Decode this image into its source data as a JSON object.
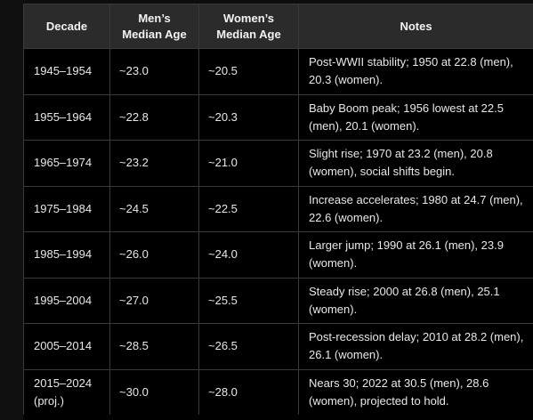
{
  "table": {
    "headers": {
      "decade": "Decade",
      "men_line1": "Men’s",
      "men_line2": "Median Age",
      "women_line1": "Women’s",
      "women_line2": "Median Age",
      "notes": "Notes"
    },
    "rows": [
      {
        "decade": "1945–1954",
        "men": "~23.0",
        "women": "~20.5",
        "notes": "Post-WWII stability; 1950 at 22.8 (men), 20.3 (women)."
      },
      {
        "decade": "1955–1964",
        "men": "~22.8",
        "women": "~20.3",
        "notes": "Baby Boom peak; 1956 lowest at 22.5 (men), 20.1 (women)."
      },
      {
        "decade": "1965–1974",
        "men": "~23.2",
        "women": "~21.0",
        "notes": "Slight rise; 1970 at 23.2 (men), 20.8 (women), social shifts begin."
      },
      {
        "decade": "1975–1984",
        "men": "~24.5",
        "women": "~22.5",
        "notes": "Increase accelerates; 1980 at 24.7 (men), 22.6 (women)."
      },
      {
        "decade": "1985–1994",
        "men": "~26.0",
        "women": "~24.0",
        "notes": "Larger jump; 1990 at 26.1 (men), 23.9 (women)."
      },
      {
        "decade": "1995–2004",
        "men": "~27.0",
        "women": "~25.5",
        "notes": "Steady rise; 2000 at 26.8 (men), 25.1 (women)."
      },
      {
        "decade": "2005–2014",
        "men": "~28.5",
        "women": "~26.5",
        "notes": "Post-recession delay; 2010 at 28.2 (men), 26.1 (women)."
      },
      {
        "decade_line1": "2015–2024",
        "decade_line2": "(proj.)",
        "men": "~30.0",
        "women": "~28.0",
        "notes": "Nears 30; 2022 at 30.5 (men), 28.6 (women), projected to hold."
      }
    ]
  }
}
